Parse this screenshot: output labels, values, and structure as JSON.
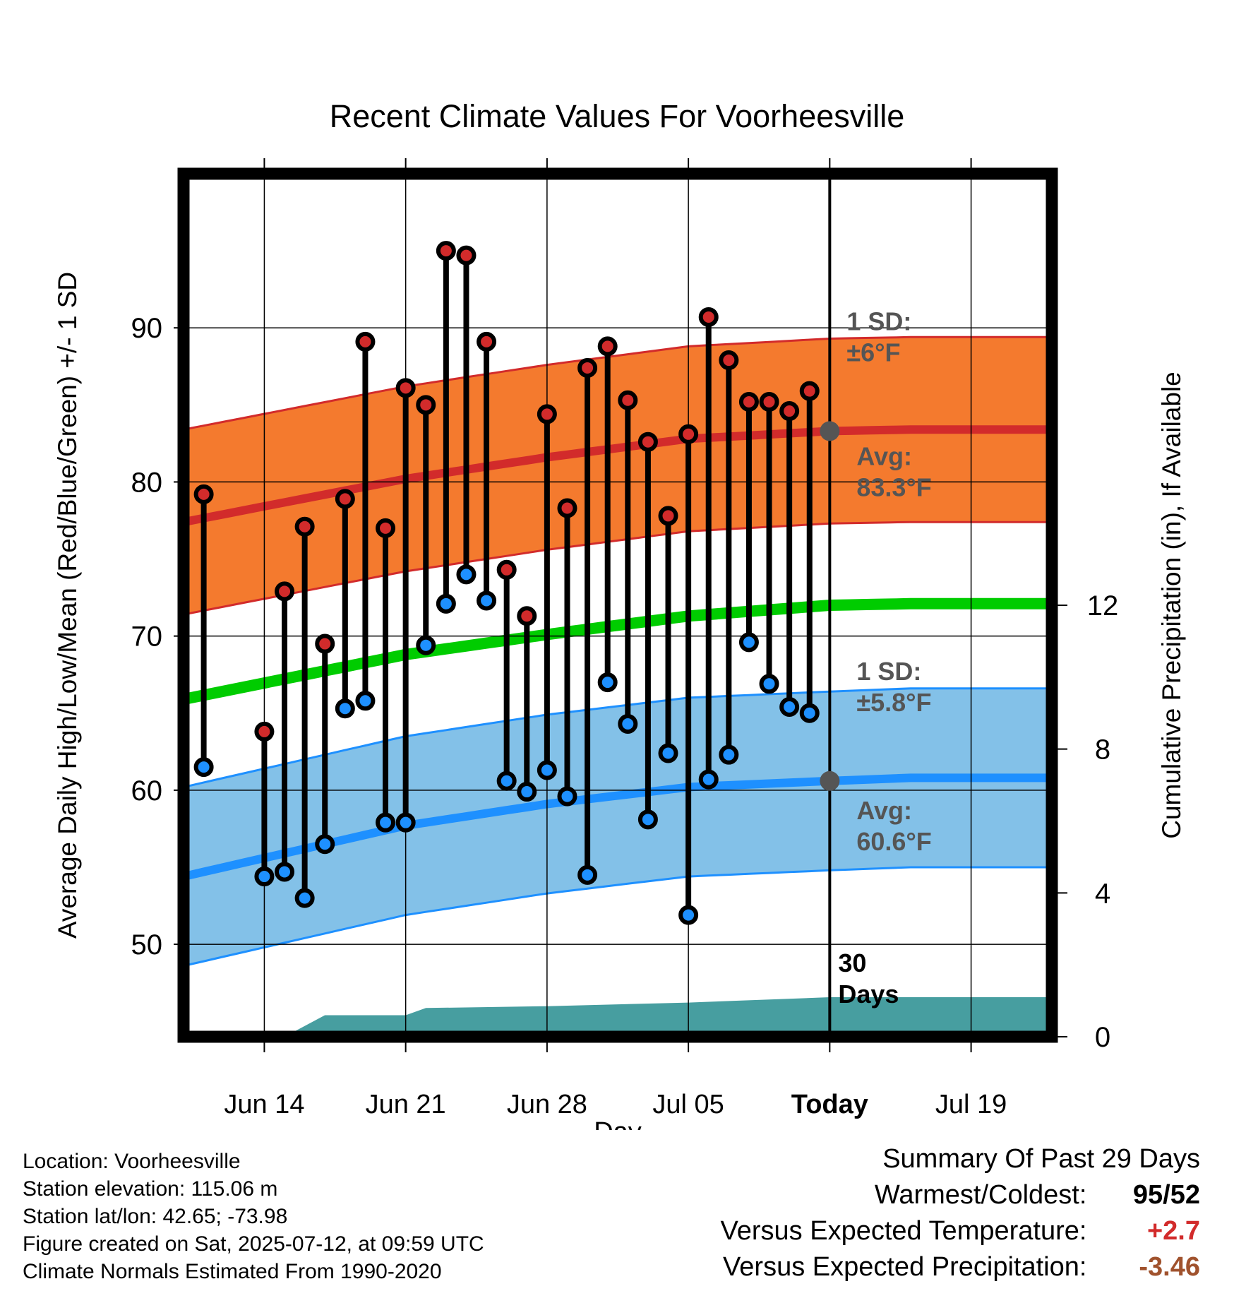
{
  "chart_data": {
    "type": "line",
    "title": "Recent Climate Values For Voorheesville",
    "xlabel": "Day",
    "ylabel": "Average Daily High/Low/Mean (Red/Blue/Green) +/- 1 SD",
    "ylabel_right": "Cumulative Precipitation (in), If Available",
    "x_range": [
      "2025-06-10",
      "2025-07-23"
    ],
    "ylim": [
      44,
      100
    ],
    "ylim_right": [
      0,
      24
    ],
    "yticks": [
      "50",
      "60",
      "70",
      "80",
      "90"
    ],
    "yticks_right": [
      "0",
      "4",
      "8",
      "12"
    ],
    "xticks": [
      {
        "date": "2025-06-14",
        "label": "Jun 14"
      },
      {
        "date": "2025-06-21",
        "label": "Jun 21"
      },
      {
        "date": "2025-06-28",
        "label": "Jun 28"
      },
      {
        "date": "2025-07-05",
        "label": "Jul 05"
      },
      {
        "date": "2025-07-12",
        "label": "Today"
      },
      {
        "date": "2025-07-19",
        "label": "Jul 19"
      }
    ],
    "grid": true,
    "today": "2025-07-12",
    "dates": [
      "2025-06-11",
      "2025-06-13",
      "2025-06-14",
      "2025-06-15",
      "2025-06-16",
      "2025-06-17",
      "2025-06-18",
      "2025-06-19",
      "2025-06-20",
      "2025-06-21",
      "2025-06-22",
      "2025-06-23",
      "2025-06-24",
      "2025-06-25",
      "2025-06-26",
      "2025-06-27",
      "2025-06-28",
      "2025-06-29",
      "2025-06-30",
      "2025-07-01",
      "2025-07-02",
      "2025-07-03",
      "2025-07-04",
      "2025-07-05",
      "2025-07-06",
      "2025-07-07",
      "2025-07-08",
      "2025-07-09",
      "2025-07-10",
      "2025-07-11"
    ],
    "daily_high": [
      79.2,
      null,
      63.8,
      72.9,
      77.1,
      69.5,
      78.9,
      89.1,
      77.0,
      86.1,
      85.0,
      95.0,
      94.7,
      89.1,
      74.3,
      71.3,
      84.4,
      78.3,
      87.4,
      88.8,
      85.3,
      82.6,
      77.8,
      83.1,
      90.7,
      87.9,
      85.2,
      85.2,
      84.6,
      85.9
    ],
    "daily_low": [
      61.5,
      null,
      54.4,
      54.7,
      53.0,
      56.5,
      65.3,
      65.8,
      57.9,
      57.9,
      69.4,
      72.1,
      74.0,
      72.3,
      60.6,
      59.9,
      61.3,
      59.6,
      54.5,
      67.0,
      64.3,
      58.1,
      62.4,
      51.9,
      60.7,
      62.3,
      69.6,
      66.9,
      65.4,
      65.0
    ],
    "normals": {
      "dates": [
        "2025-06-10",
        "2025-06-21",
        "2025-06-28",
        "2025-07-05",
        "2025-07-12",
        "2025-07-16",
        "2025-07-23"
      ],
      "high_avg": [
        77.4,
        80.2,
        81.6,
        82.8,
        83.3,
        83.4,
        83.4
      ],
      "low_avg": [
        54.4,
        57.7,
        59.1,
        60.2,
        60.6,
        60.8,
        60.8
      ],
      "mean_avg": [
        65.9,
        68.8,
        70.1,
        71.3,
        72.0,
        72.1,
        72.1
      ],
      "high_sd": 6.0,
      "low_sd": 5.8
    },
    "precip_cumulative": {
      "dates": [
        "2025-06-10",
        "2025-06-15",
        "2025-06-16",
        "2025-06-17",
        "2025-06-21",
        "2025-06-22",
        "2025-06-28",
        "2025-07-05",
        "2025-07-12",
        "2025-07-23"
      ],
      "values": [
        0,
        0,
        0.3,
        0.6,
        0.6,
        0.8,
        0.85,
        0.95,
        1.1,
        1.1
      ]
    },
    "annotations": [
      {
        "text_line1": "1 SD:",
        "text_line2": "±6°F"
      },
      {
        "text_line1": "Avg:",
        "text_line2": "83.3°F"
      },
      {
        "text_line1": "1 SD:",
        "text_line2": "±5.8°F"
      },
      {
        "text_line1": "Avg:",
        "text_line2": "60.6°F"
      },
      {
        "text_line1": "30",
        "text_line2": "Days"
      }
    ],
    "colors": {
      "high_band": "#f47a2e",
      "high_line": "#d22b2b",
      "low_band": "#83c1e8",
      "low_line": "#1e90ff",
      "mean_line": "#00cc00",
      "precip": "#479ea0",
      "high_point": "#d22b2b",
      "low_point": "#1e90ff",
      "annotation": "#555555"
    }
  },
  "footer": {
    "location": "Location: Voorheesville",
    "elevation": "Station elevation: 115.06 m",
    "latlon": "Station lat/lon: 42.65; -73.98",
    "created": "Figure created on Sat, 2025-07-12, at 09:59 UTC",
    "normals": "Climate Normals Estimated From 1990-2020"
  },
  "summary": {
    "title": "Summary Of Past 29 Days",
    "warmest_label": "Warmest/Coldest:",
    "warmest_value": "95/52",
    "temp_label": "Versus Expected Temperature:",
    "temp_value": "+2.7",
    "temp_color": "#d22b2b",
    "precip_label": "Versus Expected Precipitation:",
    "precip_value": "-3.46",
    "precip_color": "#a0522d"
  }
}
